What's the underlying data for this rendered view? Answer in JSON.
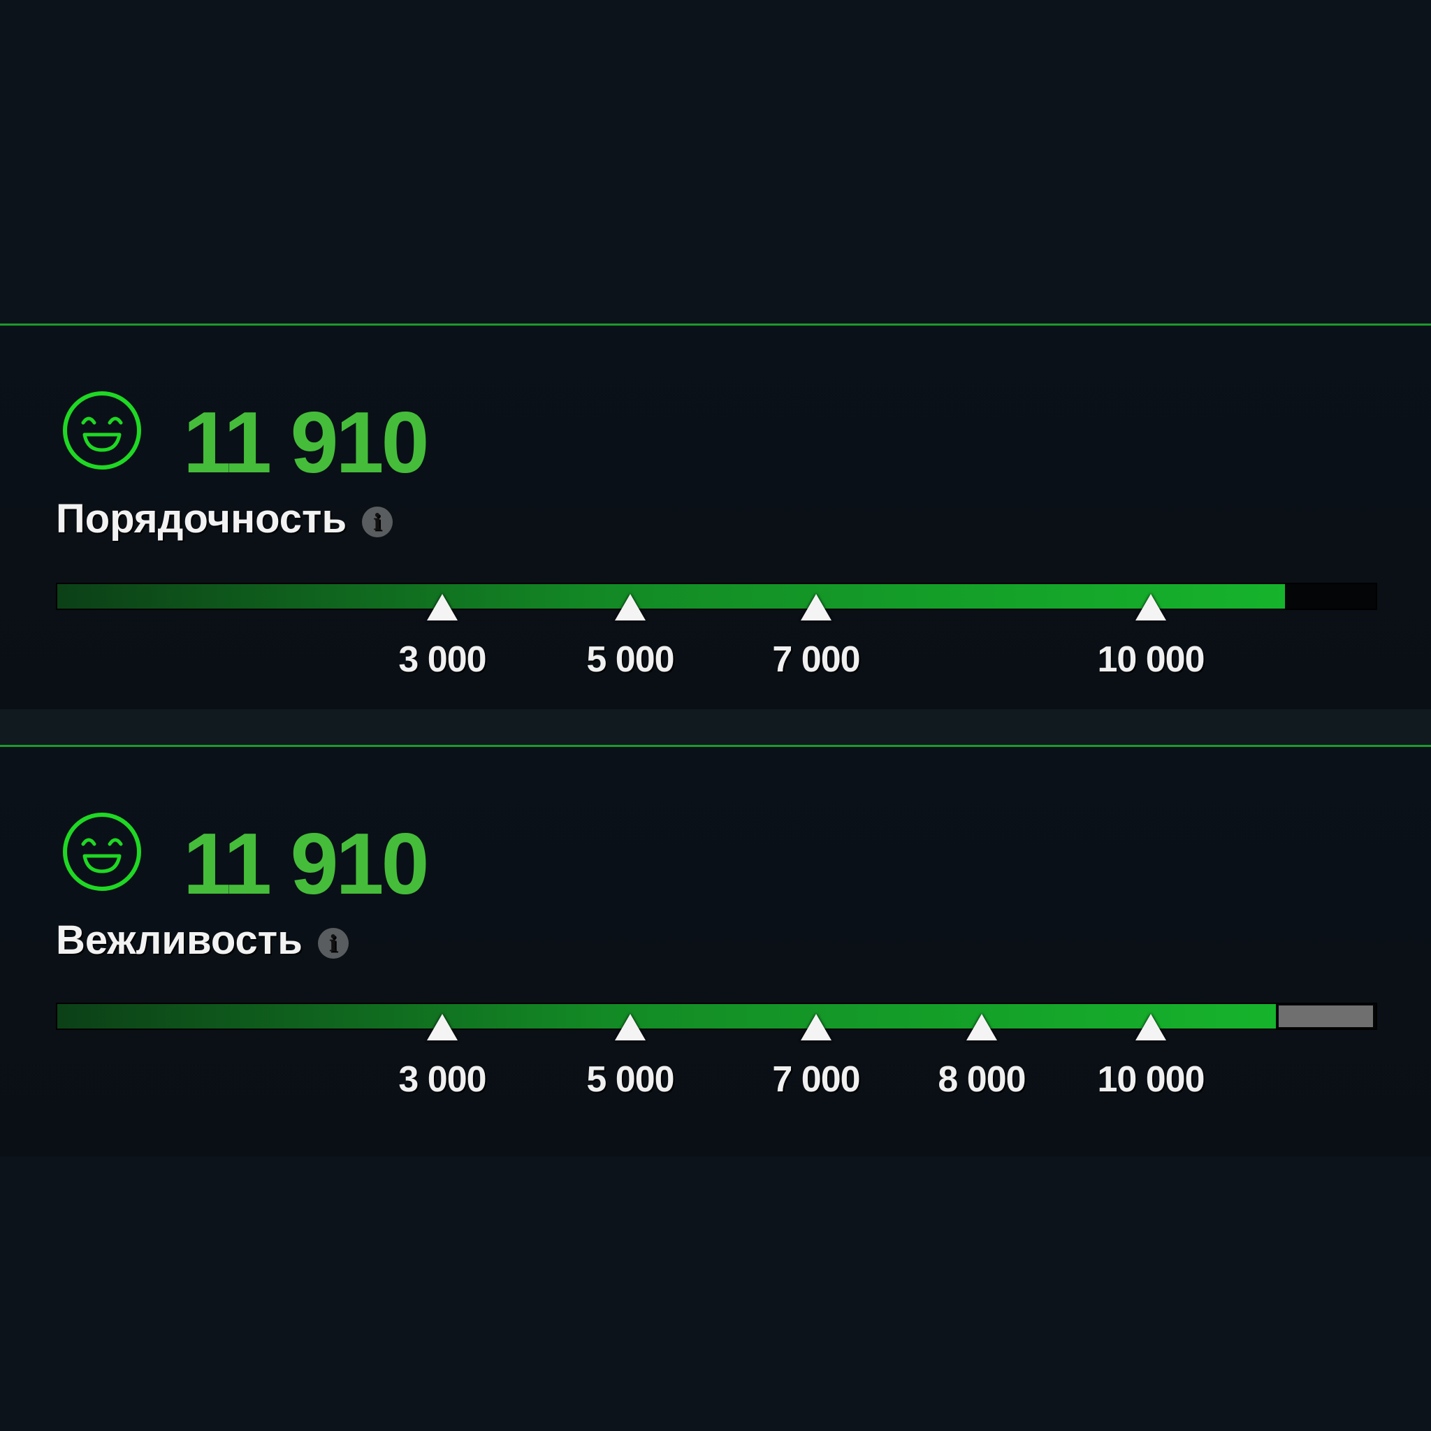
{
  "colors": {
    "accent": "#45bd3a",
    "face": "#1fd824",
    "divider": "#1c9a2c",
    "remaining": "#6f6f6f"
  },
  "stats": [
    {
      "icon": "smiling-face-icon",
      "score": "11 910",
      "title": "Порядочность",
      "info_icon": "info-icon",
      "info_glyph": "i",
      "progress": 0.931,
      "remaining_style": "dark",
      "milestones": [
        "3 000",
        "5 000",
        "7 000",
        "10 000"
      ]
    },
    {
      "icon": "smiling-face-icon",
      "score": "11 910",
      "title": "Вежливость",
      "info_icon": "info-icon",
      "info_glyph": "i",
      "progress": 0.924,
      "remaining_style": "gray",
      "milestones": [
        "3 000",
        "5 000",
        "7 000",
        "8 000",
        "10 000"
      ]
    }
  ]
}
